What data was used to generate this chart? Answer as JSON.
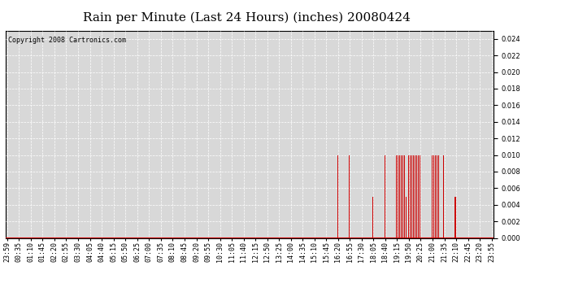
{
  "title": "Rain per Minute (Last 24 Hours) (inches) 20080424",
  "copyright_text": "Copyright 2008 Cartronics.com",
  "background_color": "#ffffff",
  "plot_bg_color": "#d8d8d8",
  "bar_color": "#cc0000",
  "baseline_color": "#cc0000",
  "grid_color": "#ffffff",
  "ylim": [
    0.0,
    0.025
  ],
  "yticks": [
    0.0,
    0.002,
    0.004,
    0.006,
    0.008,
    0.01,
    0.012,
    0.014,
    0.016,
    0.018,
    0.02,
    0.022,
    0.024
  ],
  "title_fontsize": 11,
  "tick_fontsize": 6,
  "copyright_fontsize": 6,
  "x_tick_labels": [
    "23:59",
    "00:35",
    "01:10",
    "01:45",
    "02:20",
    "02:55",
    "03:30",
    "04:05",
    "04:40",
    "05:15",
    "05:50",
    "06:25",
    "07:00",
    "07:35",
    "08:10",
    "08:45",
    "09:20",
    "09:55",
    "10:30",
    "11:05",
    "11:40",
    "12:15",
    "12:50",
    "13:25",
    "14:00",
    "14:35",
    "15:10",
    "15:45",
    "16:20",
    "16:55",
    "17:30",
    "18:05",
    "18:40",
    "19:15",
    "19:50",
    "20:25",
    "21:00",
    "21:35",
    "22:10",
    "22:45",
    "23:20",
    "23:55"
  ],
  "rain_minutes": [
    {
      "time": "16:20",
      "value": 0.01
    },
    {
      "time": "16:55",
      "value": 0.01
    },
    {
      "time": "18:05",
      "value": 0.005
    },
    {
      "time": "18:40",
      "value": 0.01
    },
    {
      "time": "19:15",
      "value": 0.01
    },
    {
      "time": "19:20",
      "value": 0.01
    },
    {
      "time": "19:25",
      "value": 0.01
    },
    {
      "time": "19:30",
      "value": 0.01
    },
    {
      "time": "19:35",
      "value": 0.01
    },
    {
      "time": "19:40",
      "value": 0.01
    },
    {
      "time": "19:45",
      "value": 0.005
    },
    {
      "time": "19:50",
      "value": 0.01
    },
    {
      "time": "19:55",
      "value": 0.01
    },
    {
      "time": "20:00",
      "value": 0.01
    },
    {
      "time": "20:05",
      "value": 0.01
    },
    {
      "time": "20:10",
      "value": 0.01
    },
    {
      "time": "20:15",
      "value": 0.01
    },
    {
      "time": "20:20",
      "value": 0.01
    },
    {
      "time": "20:25",
      "value": 0.01
    },
    {
      "time": "21:00",
      "value": 0.01
    },
    {
      "time": "21:05",
      "value": 0.01
    },
    {
      "time": "21:10",
      "value": 0.01
    },
    {
      "time": "21:15",
      "value": 0.01
    },
    {
      "time": "21:20",
      "value": 0.01
    },
    {
      "time": "21:35",
      "value": 0.01
    },
    {
      "time": "22:10",
      "value": 0.005
    }
  ],
  "num_points": 1440
}
